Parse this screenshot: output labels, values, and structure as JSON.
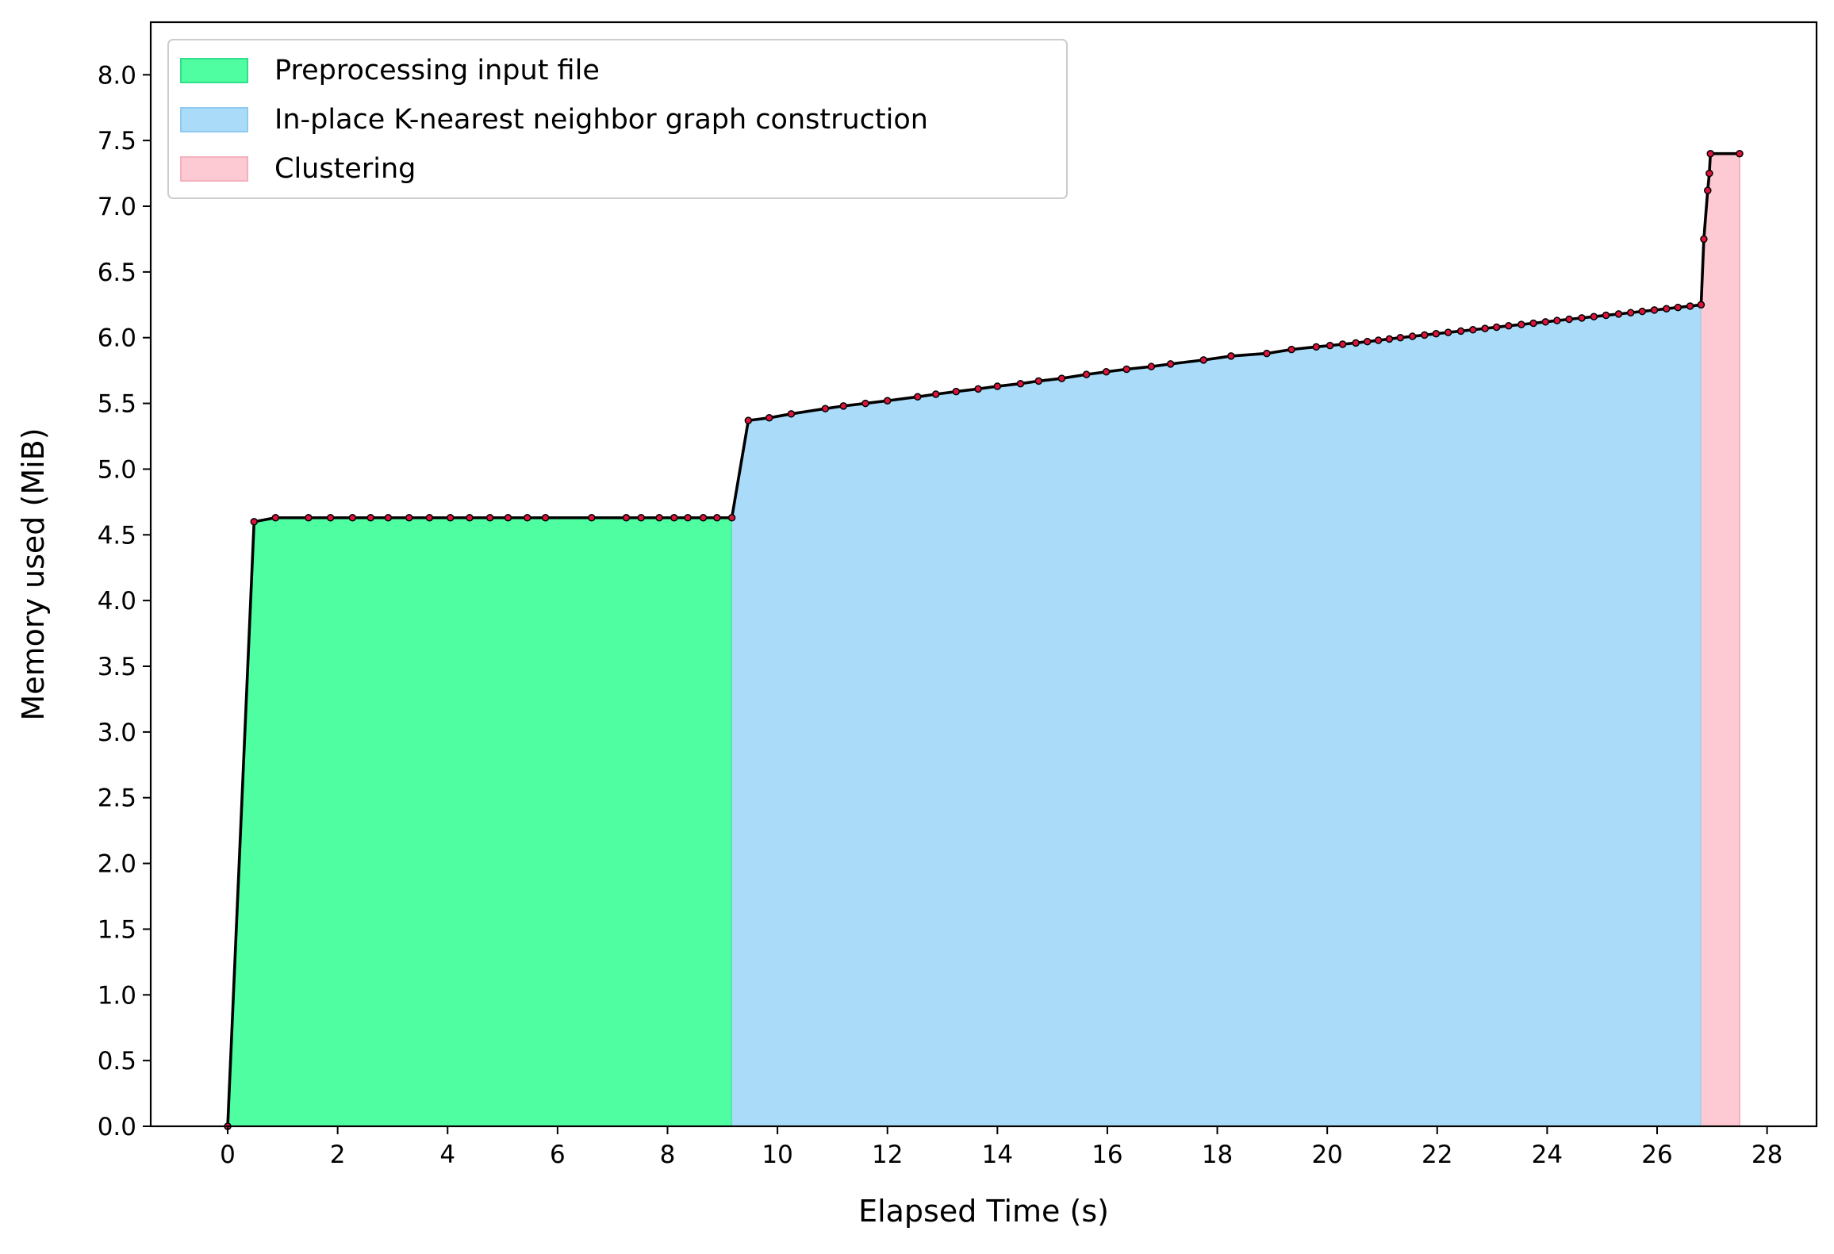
{
  "chart_data": {
    "type": "area",
    "xlabel": "Elapsed Time (s)",
    "ylabel": "Memory used (MiB)",
    "xlim": [
      -1.4,
      28.9
    ],
    "ylim": [
      0,
      8.4
    ],
    "xticks": [
      0,
      2,
      4,
      6,
      8,
      10,
      12,
      14,
      16,
      18,
      20,
      22,
      24,
      26,
      28
    ],
    "yticks": [
      0.0,
      0.5,
      1.0,
      1.5,
      2.0,
      2.5,
      3.0,
      3.5,
      4.0,
      4.5,
      5.0,
      5.5,
      6.0,
      6.5,
      7.0,
      7.5,
      8.0
    ],
    "xtick_labels": [
      "0",
      "2",
      "4",
      "6",
      "8",
      "10",
      "12",
      "14",
      "16",
      "18",
      "20",
      "22",
      "24",
      "26",
      "28"
    ],
    "ytick_labels": [
      "0.0",
      "0.5",
      "1.0",
      "1.5",
      "2.0",
      "2.5",
      "3.0",
      "3.5",
      "4.0",
      "4.5",
      "5.0",
      "5.5",
      "6.0",
      "6.5",
      "7.0",
      "7.5",
      "8.0"
    ],
    "legend_position": "upper-left",
    "grid": false,
    "line_color": "#000000",
    "marker_color": "#dc143c",
    "phases": [
      {
        "name": "Preprocessing input file",
        "x_start": 0.0,
        "x_end": 9.17,
        "color": "#50fea2",
        "edge": "#2fe08a"
      },
      {
        "name": "In-place K-nearest neighbor graph construction",
        "x_start": 9.17,
        "x_end": 26.8,
        "color": "#aadcfa",
        "edge": "#8fcaf0"
      },
      {
        "name": "Clustering",
        "x_start": 26.8,
        "x_end": 27.5,
        "color": "#fdc9d2",
        "edge": "#f5b0bd"
      }
    ],
    "series": [
      {
        "x": [
          0.0,
          0.48,
          0.87,
          1.47,
          1.87,
          2.27,
          2.6,
          2.92,
          3.3,
          3.67,
          4.05,
          4.4,
          4.77,
          5.1,
          5.45,
          5.78,
          6.62,
          7.25,
          7.52,
          7.85,
          8.12,
          8.37,
          8.65,
          8.9,
          9.17,
          9.47,
          9.85,
          10.25,
          10.87,
          11.2,
          11.6,
          12.0,
          12.55,
          12.88,
          13.25,
          13.65,
          14.0,
          14.42,
          14.75,
          15.17,
          15.62,
          15.98,
          16.35,
          16.8,
          17.15,
          17.75,
          18.25,
          18.9,
          19.35,
          19.8,
          20.05,
          20.28,
          20.52,
          20.73,
          20.93,
          21.13,
          21.33,
          21.55,
          21.77,
          21.98,
          22.2,
          22.43,
          22.65,
          22.87,
          23.08,
          23.3,
          23.53,
          23.75,
          23.97,
          24.18,
          24.4,
          24.63,
          24.85,
          25.07,
          25.3,
          25.52,
          25.73,
          25.95,
          26.17,
          26.38,
          26.6,
          26.8,
          26.85,
          26.92,
          26.95,
          26.97,
          27.5
        ],
        "y": [
          0.0,
          4.6,
          4.63,
          4.63,
          4.63,
          4.63,
          4.63,
          4.63,
          4.63,
          4.63,
          4.63,
          4.63,
          4.63,
          4.63,
          4.63,
          4.63,
          4.63,
          4.63,
          4.63,
          4.63,
          4.63,
          4.63,
          4.63,
          4.63,
          4.63,
          5.37,
          5.39,
          5.42,
          5.46,
          5.48,
          5.5,
          5.52,
          5.55,
          5.57,
          5.59,
          5.61,
          5.63,
          5.65,
          5.67,
          5.69,
          5.72,
          5.74,
          5.76,
          5.78,
          5.8,
          5.83,
          5.86,
          5.88,
          5.91,
          5.93,
          5.94,
          5.95,
          5.96,
          5.97,
          5.98,
          5.99,
          6.0,
          6.01,
          6.02,
          6.03,
          6.04,
          6.05,
          6.06,
          6.07,
          6.08,
          6.09,
          6.1,
          6.11,
          6.12,
          6.13,
          6.14,
          6.15,
          6.16,
          6.17,
          6.18,
          6.19,
          6.2,
          6.21,
          6.22,
          6.23,
          6.24,
          6.25,
          6.75,
          7.12,
          7.25,
          7.4,
          7.4
        ]
      }
    ]
  }
}
